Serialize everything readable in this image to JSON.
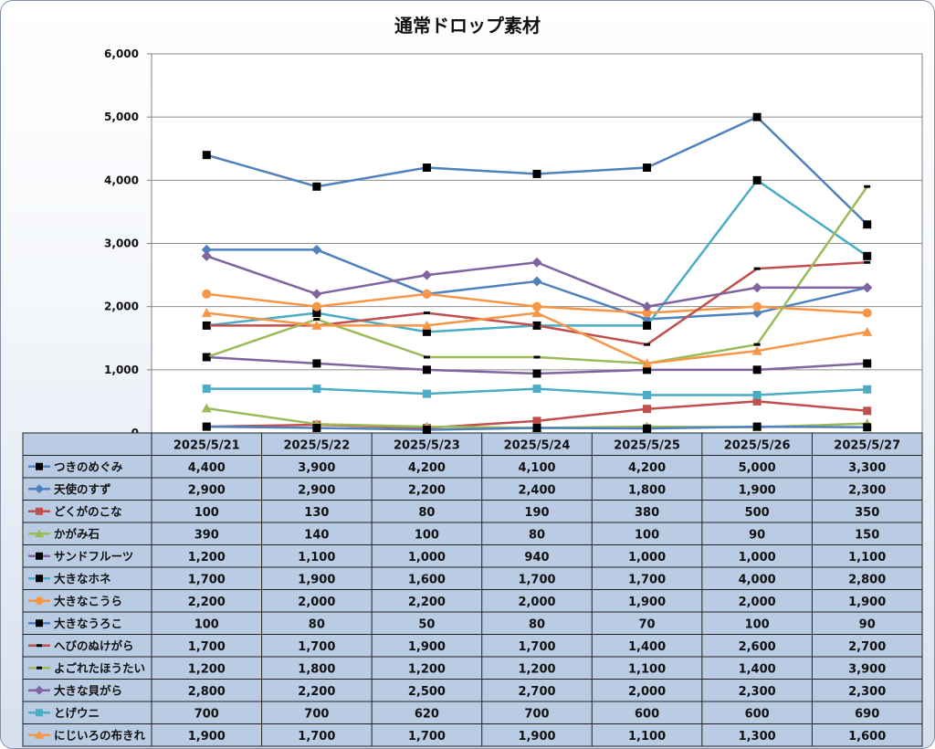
{
  "chart_data": {
    "type": "line",
    "title": "通常ドロップ素材",
    "ylim": [
      0,
      6000
    ],
    "yticks": [
      "0",
      "1,000",
      "2,000",
      "3,000",
      "4,000",
      "5,000",
      "6,000"
    ],
    "grid": true,
    "legend": "data-table",
    "categories": [
      "2025/5/21",
      "2025/5/22",
      "2025/5/23",
      "2025/5/24",
      "2025/5/25",
      "2025/5/26",
      "2025/5/27"
    ],
    "series": [
      {
        "name": "つきのめぐみ",
        "color": "#4f81bd",
        "marker": "square-black",
        "values": [
          4400,
          3900,
          4200,
          4100,
          4200,
          5000,
          3300
        ],
        "labels": [
          "4,400",
          "3,900",
          "4,200",
          "4,100",
          "4,200",
          "5,000",
          "3,300"
        ]
      },
      {
        "name": "天使のすず",
        "color": "#4f81bd",
        "marker": "diamond",
        "values": [
          2900,
          2900,
          2200,
          2400,
          1800,
          1900,
          2300
        ],
        "labels": [
          "2,900",
          "2,900",
          "2,200",
          "2,400",
          "1,800",
          "1,900",
          "2,300"
        ]
      },
      {
        "name": "どくがのこな",
        "color": "#c0504d",
        "marker": "square",
        "values": [
          100,
          130,
          80,
          190,
          380,
          500,
          350
        ],
        "labels": [
          "100",
          "130",
          "80",
          "190",
          "380",
          "500",
          "350"
        ]
      },
      {
        "name": "かがみ石",
        "color": "#9bbb59",
        "marker": "triangle",
        "values": [
          390,
          140,
          100,
          80,
          100,
          90,
          150
        ],
        "labels": [
          "390",
          "140",
          "100",
          "80",
          "100",
          "90",
          "150"
        ]
      },
      {
        "name": "サンドフルーツ",
        "color": "#8064a2",
        "marker": "square-black",
        "values": [
          1200,
          1100,
          1000,
          940,
          1000,
          1000,
          1100
        ],
        "labels": [
          "1,200",
          "1,100",
          "1,000",
          "940",
          "1,000",
          "1,000",
          "1,100"
        ]
      },
      {
        "name": "大きなホネ",
        "color": "#4bacc6",
        "marker": "square-black",
        "values": [
          1700,
          1900,
          1600,
          1700,
          1700,
          4000,
          2800
        ],
        "labels": [
          "1,700",
          "1,900",
          "1,600",
          "1,700",
          "1,700",
          "4,000",
          "2,800"
        ]
      },
      {
        "name": "大きなこうら",
        "color": "#f79646",
        "marker": "circle",
        "values": [
          2200,
          2000,
          2200,
          2000,
          1900,
          2000,
          1900
        ],
        "labels": [
          "2,200",
          "2,000",
          "2,200",
          "2,000",
          "1,900",
          "2,000",
          "1,900"
        ]
      },
      {
        "name": "大きなうろこ",
        "color": "#4f81bd",
        "marker": "square-black",
        "values": [
          100,
          80,
          50,
          80,
          70,
          100,
          90
        ],
        "labels": [
          "100",
          "80",
          "50",
          "80",
          "70",
          "100",
          "90"
        ]
      },
      {
        "name": "へびのぬけがら",
        "color": "#c0504d",
        "marker": "dash-black",
        "values": [
          1700,
          1700,
          1900,
          1700,
          1400,
          2600,
          2700
        ],
        "labels": [
          "1,700",
          "1,700",
          "1,900",
          "1,700",
          "1,400",
          "2,600",
          "2,700"
        ]
      },
      {
        "name": "よごれたほうたい",
        "color": "#9bbb59",
        "marker": "dash-black",
        "values": [
          1200,
          1800,
          1200,
          1200,
          1100,
          1400,
          3900
        ],
        "labels": [
          "1,200",
          "1,800",
          "1,200",
          "1,200",
          "1,100",
          "1,400",
          "3,900"
        ]
      },
      {
        "name": "大きな貝がら",
        "color": "#8064a2",
        "marker": "diamond",
        "values": [
          2800,
          2200,
          2500,
          2700,
          2000,
          2300,
          2300
        ],
        "labels": [
          "2,800",
          "2,200",
          "2,500",
          "2,700",
          "2,000",
          "2,300",
          "2,300"
        ]
      },
      {
        "name": "とげウニ",
        "color": "#4bacc6",
        "marker": "square",
        "values": [
          700,
          700,
          620,
          700,
          600,
          600,
          690
        ],
        "labels": [
          "700",
          "700",
          "620",
          "700",
          "600",
          "600",
          "690"
        ]
      },
      {
        "name": "にじいろの布きれ",
        "color": "#f79646",
        "marker": "triangle",
        "values": [
          1900,
          1700,
          1700,
          1900,
          1100,
          1300,
          1600
        ],
        "labels": [
          "1,900",
          "1,700",
          "1,700",
          "1,900",
          "1,100",
          "1,300",
          "1,600"
        ]
      }
    ]
  }
}
